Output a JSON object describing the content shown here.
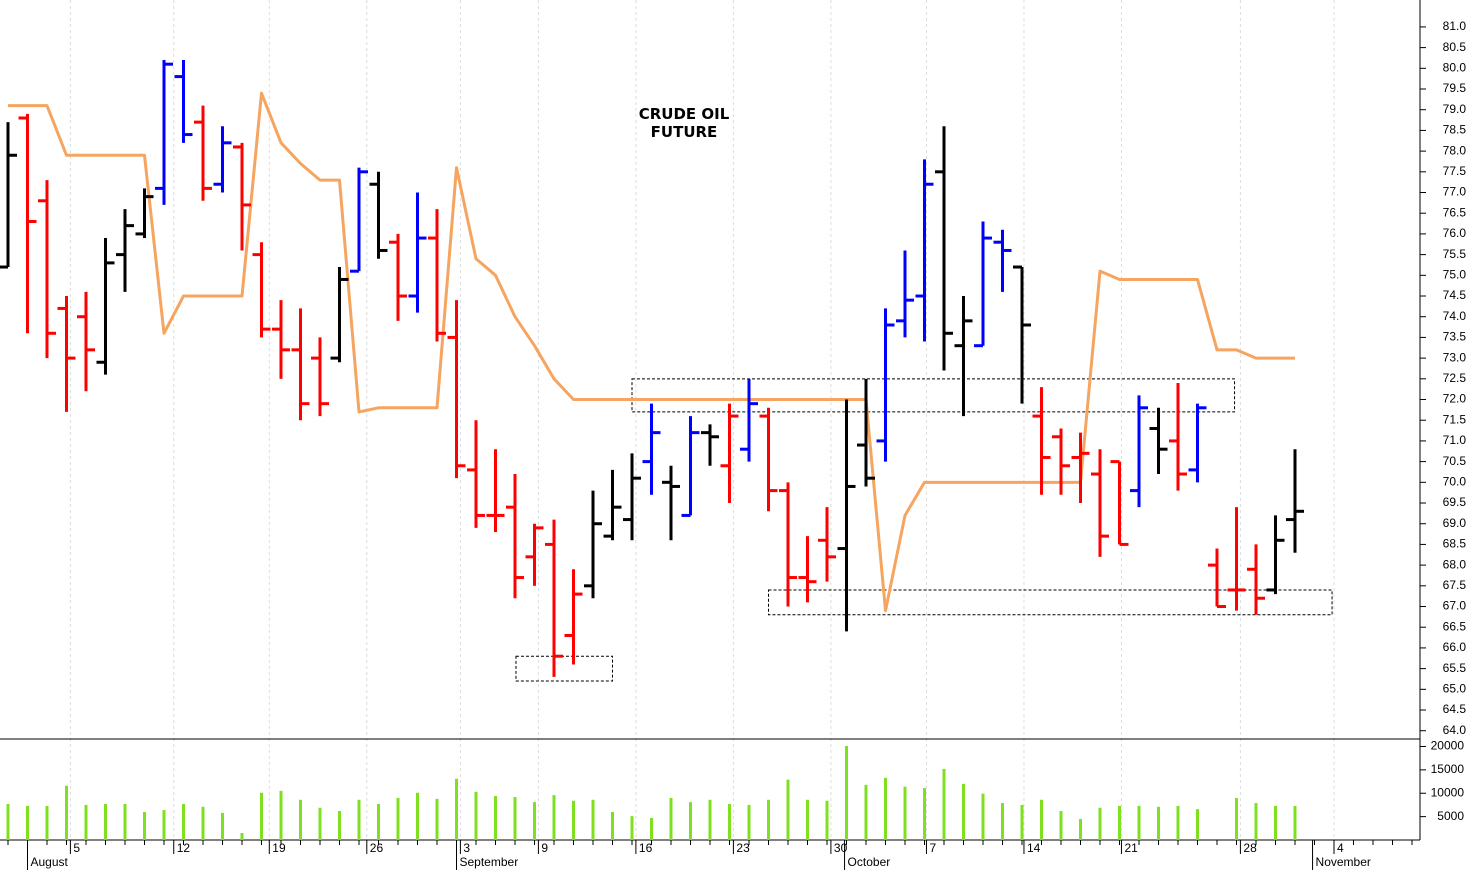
{
  "chart_data": [
    {
      "type": "ohlc",
      "title": "CRUDE OIL FUTURE",
      "xlim": [
        -0.41,
        72.41
      ],
      "ylim": [
        63.8,
        81.65
      ],
      "yticks": [
        {
          "value": 64,
          "label": "64.0"
        },
        {
          "value": 64.5,
          "label": "64.5"
        },
        {
          "value": 65,
          "label": "65.0"
        },
        {
          "value": 65.5,
          "label": "65.5"
        },
        {
          "value": 66,
          "label": "66.0"
        },
        {
          "value": 66.5,
          "label": "66.5"
        },
        {
          "value": 67,
          "label": "67.0"
        },
        {
          "value": 67.5,
          "label": "67.5"
        },
        {
          "value": 68,
          "label": "68.0"
        },
        {
          "value": 68.5,
          "label": "68.5"
        },
        {
          "value": 69,
          "label": "69.0"
        },
        {
          "value": 69.5,
          "label": "69.5"
        },
        {
          "value": 70,
          "label": "70.0"
        },
        {
          "value": 70.5,
          "label": "70.5"
        },
        {
          "value": 71,
          "label": "71.0"
        },
        {
          "value": 71.5,
          "label": "71.5"
        },
        {
          "value": 72,
          "label": "72.0"
        },
        {
          "value": 72.5,
          "label": "72.5"
        },
        {
          "value": 73,
          "label": "73.0"
        },
        {
          "value": 73.5,
          "label": "73.5"
        },
        {
          "value": 74,
          "label": "74.0"
        },
        {
          "value": 74.5,
          "label": "74.5"
        },
        {
          "value": 75,
          "label": "75.0"
        },
        {
          "value": 75.5,
          "label": "75.5"
        },
        {
          "value": 76,
          "label": "76.0"
        },
        {
          "value": 76.5,
          "label": "76.5"
        },
        {
          "value": 77,
          "label": "77.0"
        },
        {
          "value": 77.5,
          "label": "77.5"
        },
        {
          "value": 78,
          "label": "78.0"
        },
        {
          "value": 78.5,
          "label": "78.5"
        },
        {
          "value": 79,
          "label": "79.0"
        },
        {
          "value": 79.5,
          "label": "79.5"
        },
        {
          "value": 80,
          "label": "80.0"
        },
        {
          "value": 80.5,
          "label": "80.5"
        },
        {
          "value": 81,
          "label": "81.0"
        }
      ],
      "open": [
        75.2,
        78.8,
        76.8,
        74.2,
        74.0,
        72.9,
        75.5,
        76.0,
        77.1,
        79.8,
        78.7,
        77.2,
        78.1,
        75.5,
        73.7,
        73.2,
        73.0,
        73.0,
        75.1,
        77.2,
        75.8,
        74.5,
        75.9,
        73.5,
        70.3,
        69.2,
        69.4,
        68.2,
        68.5,
        66.3,
        67.5,
        68.7,
        69.1,
        70.5,
        70.0,
        69.2,
        71.2,
        70.4,
        70.8,
        71.6,
        69.8,
        67.7,
        68.6,
        68.4,
        70.9,
        71.0,
        73.9,
        74.5,
        77.5,
        73.3,
        73.3,
        75.8,
        75.2,
        71.6,
        71.1,
        70.6,
        70.2,
        70.5,
        69.8,
        71.3,
        71.0,
        70.3,
        68.0,
        67.4,
        67.9,
        67.4,
        69.1
      ],
      "high": [
        78.7,
        78.9,
        77.3,
        74.5,
        74.6,
        75.9,
        76.6,
        77.1,
        80.2,
        80.2,
        79.1,
        78.6,
        78.2,
        75.8,
        74.4,
        74.2,
        73.5,
        75.2,
        77.6,
        77.5,
        76.0,
        77.0,
        76.6,
        74.4,
        71.5,
        70.8,
        70.2,
        69.0,
        69.1,
        67.9,
        69.8,
        70.3,
        70.7,
        71.9,
        70.4,
        71.6,
        71.4,
        71.9,
        72.5,
        71.8,
        70.0,
        68.7,
        69.4,
        72.0,
        72.5,
        74.2,
        75.6,
        77.8,
        78.6,
        74.5,
        76.3,
        76.1,
        75.2,
        72.3,
        71.3,
        71.2,
        70.8,
        70.5,
        72.1,
        71.8,
        72.4,
        71.9,
        68.4,
        69.4,
        68.5,
        69.2,
        70.8
      ],
      "low": [
        75.2,
        73.6,
        73.0,
        71.7,
        72.2,
        72.6,
        74.6,
        75.9,
        76.7,
        78.2,
        76.8,
        77.0,
        75.6,
        73.5,
        72.5,
        71.5,
        71.6,
        72.9,
        75.1,
        75.4,
        73.9,
        74.1,
        73.4,
        70.1,
        68.9,
        68.8,
        67.2,
        67.5,
        65.3,
        65.6,
        67.2,
        68.6,
        68.6,
        69.7,
        68.6,
        69.2,
        70.4,
        69.5,
        70.5,
        69.3,
        67.0,
        67.1,
        67.6,
        66.4,
        69.9,
        70.5,
        73.5,
        73.4,
        72.7,
        71.6,
        73.3,
        74.6,
        71.9,
        69.7,
        69.7,
        69.5,
        68.2,
        68.5,
        69.4,
        70.2,
        69.8,
        70.0,
        67.0,
        66.9,
        66.8,
        67.3,
        68.3
      ],
      "close": [
        77.9,
        76.3,
        73.6,
        73.0,
        73.2,
        75.3,
        76.2,
        76.9,
        80.1,
        78.4,
        77.1,
        78.2,
        76.7,
        73.7,
        73.2,
        71.9,
        71.9,
        74.9,
        77.5,
        75.6,
        74.5,
        75.9,
        73.6,
        70.4,
        69.2,
        69.2,
        67.7,
        68.9,
        65.8,
        67.3,
        69.0,
        69.4,
        70.1,
        71.2,
        69.9,
        71.2,
        71.1,
        71.6,
        71.9,
        69.8,
        67.7,
        67.6,
        68.2,
        69.9,
        70.1,
        73.8,
        74.4,
        77.2,
        73.6,
        73.9,
        75.9,
        75.6,
        73.8,
        70.6,
        70.4,
        70.7,
        68.7,
        68.5,
        71.8,
        70.8,
        70.2,
        71.8,
        67.0,
        67.4,
        67.2,
        68.6,
        69.3
      ],
      "colors": [
        "black",
        "red",
        "red",
        "red",
        "red",
        "black",
        "black",
        "black",
        "blue",
        "blue",
        "red",
        "blue",
        "red",
        "red",
        "red",
        "red",
        "red",
        "black",
        "blue",
        "black",
        "red",
        "blue",
        "red",
        "red",
        "red",
        "red",
        "red",
        "red",
        "red",
        "red",
        "black",
        "black",
        "black",
        "blue",
        "black",
        "blue",
        "black",
        "red",
        "blue",
        "red",
        "red",
        "red",
        "red",
        "black",
        "black",
        "blue",
        "blue",
        "blue",
        "black",
        "black",
        "blue",
        "blue",
        "black",
        "red",
        "red",
        "red",
        "red",
        "red",
        "blue",
        "black",
        "red",
        "blue",
        "red",
        "red",
        "red",
        "black",
        "black"
      ],
      "line": {
        "color": "#f5a55f",
        "values": [
          79.1,
          79.1,
          79.1,
          77.9,
          77.9,
          77.9,
          77.9,
          77.9,
          73.6,
          74.5,
          74.5,
          74.5,
          74.5,
          79.4,
          78.2,
          77.7,
          77.3,
          77.3,
          71.7,
          71.8,
          71.8,
          71.8,
          71.8,
          77.6,
          75.4,
          75.0,
          74.0,
          73.3,
          72.5,
          72.0,
          72.0,
          72.0,
          72.0,
          72.0,
          72.0,
          72.0,
          72.0,
          72.0,
          72.0,
          72.0,
          72.0,
          72.0,
          72.0,
          72.0,
          72.0,
          66.9,
          69.2,
          70.0,
          70.0,
          70.0,
          70.0,
          70.0,
          70.0,
          70.0,
          70.0,
          70.0,
          75.1,
          74.9,
          74.9,
          74.9,
          74.9,
          74.9,
          73.2,
          73.2,
          73.0,
          73.0,
          73.0
        ]
      },
      "boxes": [
        {
          "x": [
            26.05,
            31.0
          ],
          "y": [
            65.2,
            65.8
          ]
        },
        {
          "x": [
            32.0,
            62.9
          ],
          "y": [
            71.7,
            72.5
          ]
        },
        {
          "x": [
            39.0,
            67.9
          ],
          "y": [
            66.8,
            67.4
          ]
        }
      ]
    },
    {
      "type": "bar",
      "color": "#7fe020",
      "xlim": [
        -0.41,
        72.41
      ],
      "ylim": [
        0,
        21600
      ],
      "yticks": [
        5000,
        10000,
        15000,
        20000
      ],
      "values": [
        7700,
        7300,
        7300,
        11600,
        7500,
        7700,
        7700,
        6000,
        6400,
        7700,
        7100,
        5800,
        1500,
        10100,
        10500,
        8600,
        6900,
        6200,
        8600,
        7700,
        9000,
        10100,
        8800,
        13100,
        10300,
        9400,
        9200,
        8100,
        9600,
        8400,
        8600,
        6000,
        5100,
        4700,
        9000,
        8100,
        8600,
        7700,
        7500,
        8600,
        12900,
        8600,
        8400,
        20100,
        11800,
        13300,
        11400,
        11100,
        15200,
        12000,
        9900,
        7900,
        7500,
        8600,
        6200,
        4500,
        6900,
        7300,
        7300,
        7100,
        7300,
        6600,
        null,
        9000,
        7900,
        7300,
        7300
      ],
      "xticks": [
        {
          "value": 3.2,
          "label": "5"
        },
        {
          "value": 8.5,
          "label": "12"
        },
        {
          "value": 13.4,
          "label": "19"
        },
        {
          "value": 18.4,
          "label": "26"
        },
        {
          "value": 23.2,
          "label": "3"
        },
        {
          "value": 27.2,
          "label": "9"
        },
        {
          "value": 32.2,
          "label": "16"
        },
        {
          "value": 37.2,
          "label": "23"
        },
        {
          "value": 42.2,
          "label": "30"
        },
        {
          "value": 47.1,
          "label": "7"
        },
        {
          "value": 52.1,
          "label": "14"
        },
        {
          "value": 57.1,
          "label": "21"
        },
        {
          "value": 63.2,
          "label": "28"
        },
        {
          "value": 68.0,
          "label": "4"
        }
      ],
      "month_ticks": [
        {
          "value": 1.0,
          "label": "August"
        },
        {
          "value": 23.0,
          "label": "September"
        },
        {
          "value": 42.9,
          "label": "October"
        },
        {
          "value": 66.9,
          "label": "November"
        }
      ]
    }
  ]
}
